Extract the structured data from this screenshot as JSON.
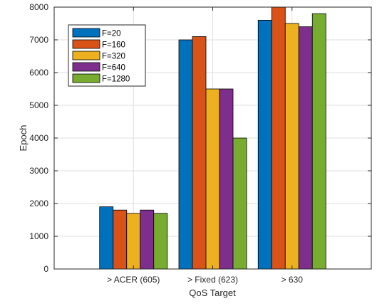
{
  "chart_data": {
    "type": "bar",
    "title": "",
    "xlabel": "QoS Target",
    "ylabel": "Epoch",
    "categories": [
      "> ACER (605)",
      "> Fixed (623)",
      "> 630"
    ],
    "series": [
      {
        "name": "F=20",
        "color": "#0072bd",
        "values": [
          1900,
          7000,
          7600
        ]
      },
      {
        "name": "F=160",
        "color": "#d95319",
        "values": [
          1800,
          7100,
          8000
        ]
      },
      {
        "name": "F=320",
        "color": "#edb120",
        "values": [
          1700,
          5500,
          7500
        ]
      },
      {
        "name": "F=640",
        "color": "#7e2f8e",
        "values": [
          1800,
          5500,
          7400
        ]
      },
      {
        "name": "F=1280",
        "color": "#77ac30",
        "values": [
          1700,
          4000,
          7800
        ]
      }
    ],
    "ylim": [
      0,
      8000
    ],
    "yticks": [
      0,
      1000,
      2000,
      3000,
      4000,
      5000,
      6000,
      7000,
      8000
    ],
    "xlim": [
      0,
      4
    ],
    "grid": true,
    "legend_position": "top-left"
  }
}
